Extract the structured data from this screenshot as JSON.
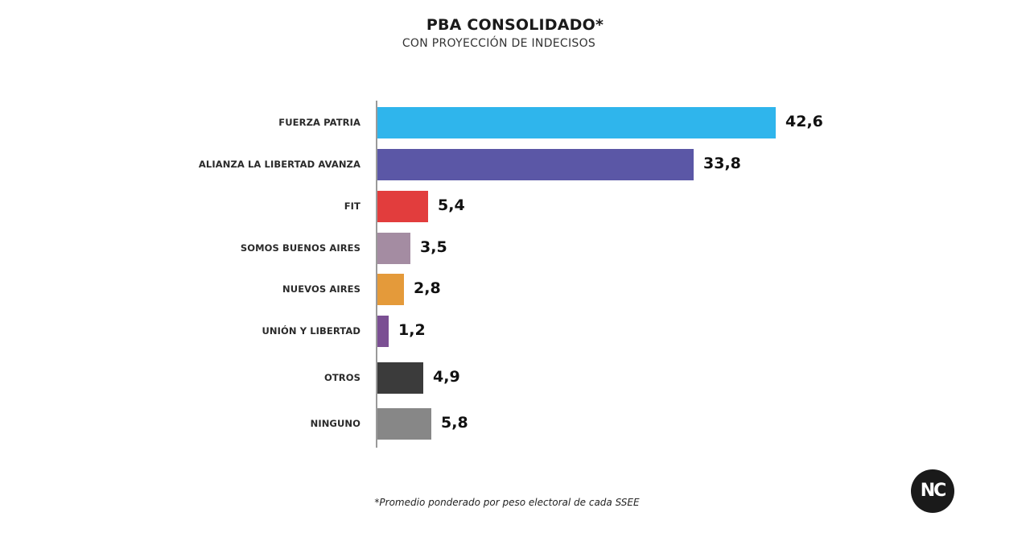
{
  "header": {
    "title": "PBA CONSOLIDADO*",
    "subtitle": "CON PROYECCIÓN DE INDECISOS"
  },
  "footnote": "*Promedio ponderado por peso electoral de cada SSEE",
  "logo": {
    "text": "NC"
  },
  "rows": [
    {
      "label": "FUERZA PATRIA",
      "value_label": "42,6",
      "color": "#2fb5ec"
    },
    {
      "label": "ALIANZA LA LIBERTAD AVANZA",
      "value_label": "33,8",
      "color": "#5b57a6"
    },
    {
      "label": "FIT",
      "value_label": "5,4",
      "color": "#e23d3d"
    },
    {
      "label": "SOMOS BUENOS AIRES",
      "value_label": "3,5",
      "color": "#a48ca2"
    },
    {
      "label": "NUEVOS AIRES",
      "value_label": "2,8",
      "color": "#e49a3a"
    },
    {
      "label": "UNIÓN Y LIBERTAD",
      "value_label": "1,2",
      "color": "#7b4f93"
    },
    {
      "label": "OTROS",
      "value_label": "4,9",
      "color": "#3b3b3b"
    },
    {
      "label": "NINGUNO",
      "value_label": "5,8",
      "color": "#878787"
    }
  ],
  "chart_data": {
    "type": "bar",
    "orientation": "horizontal",
    "title": "PBA CONSOLIDADO*",
    "subtitle": "CON PROYECCIÓN DE INDECISOS",
    "categories": [
      "FUERZA PATRIA",
      "ALIANZA LA LIBERTAD AVANZA",
      "FIT",
      "SOMOS BUENOS AIRES",
      "NUEVOS AIRES",
      "UNIÓN Y LIBERTAD",
      "OTROS",
      "NINGUNO"
    ],
    "values": [
      42.6,
      33.8,
      5.4,
      3.5,
      2.8,
      1.2,
      4.9,
      5.8
    ],
    "colors": [
      "#2fb5ec",
      "#5b57a6",
      "#e23d3d",
      "#a48ca2",
      "#e49a3a",
      "#7b4f93",
      "#3b3b3b",
      "#878787"
    ],
    "data_labels": true,
    "xlabel": "",
    "ylabel": "",
    "grid": false,
    "legend": null,
    "annotations": [
      "*Promedio ponderado por peso electoral de cada SSEE"
    ]
  }
}
